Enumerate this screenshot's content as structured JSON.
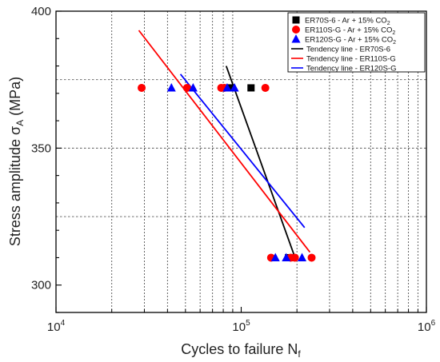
{
  "chart_data": {
    "type": "scatter",
    "xlabel": "Cycles to failure N",
    "xlabel_sub": "f",
    "ylabel": "Stress amplitude σ",
    "ylabel_sub": "A",
    "ylabel_unit": " (MPa)",
    "x_scale": "log",
    "xlim": [
      10000,
      1000000
    ],
    "ylim": [
      290,
      400
    ],
    "x_ticks": [
      {
        "value": 10000,
        "base": "10",
        "exp": "4"
      },
      {
        "value": 100000,
        "base": "10",
        "exp": "5"
      },
      {
        "value": 1000000,
        "base": "10",
        "exp": "6"
      }
    ],
    "y_ticks": [
      300,
      350,
      400
    ],
    "grid": {
      "x_minor": true,
      "y": [
        325,
        350,
        375
      ]
    },
    "legend_position": "top-right",
    "series": [
      {
        "name": "ER70S-6 - Ar + 15% CO",
        "name_sub": "2",
        "color": "#000000",
        "marker": "square",
        "points": [
          [
            85000,
            372
          ],
          [
            88000,
            372
          ],
          [
            113000,
            372
          ],
          [
            180000,
            310
          ],
          [
            190000,
            310
          ]
        ]
      },
      {
        "name": "ER110S-G - Ar + 15% CO",
        "name_sub": "2",
        "color": "#ff0000",
        "marker": "circle",
        "points": [
          [
            29000,
            372
          ],
          [
            51000,
            372
          ],
          [
            78000,
            372
          ],
          [
            81000,
            372
          ],
          [
            135000,
            372
          ],
          [
            145000,
            310
          ],
          [
            185000,
            310
          ],
          [
            195000,
            310
          ],
          [
            240000,
            310
          ]
        ]
      },
      {
        "name": "ER120S-G - Ar + 15% CO",
        "name_sub": "2",
        "color": "#0000ff",
        "marker": "triangle",
        "points": [
          [
            42000,
            372
          ],
          [
            55000,
            372
          ],
          [
            84000,
            372
          ],
          [
            92000,
            372
          ],
          [
            153000,
            310
          ],
          [
            175000,
            310
          ],
          [
            213000,
            310
          ]
        ]
      }
    ],
    "lines": [
      {
        "name": "Tendency line - ER70S-6",
        "color": "#000000",
        "points": [
          [
            83000,
            380
          ],
          [
            193000,
            311
          ]
        ]
      },
      {
        "name": "Tendency line - ER110S-G",
        "color": "#ff0000",
        "points": [
          [
            28000,
            393
          ],
          [
            235000,
            312
          ]
        ]
      },
      {
        "name": "Tendency line - ER120S-G",
        "color": "#0000ff",
        "points": [
          [
            47000,
            377
          ],
          [
            220000,
            321
          ]
        ]
      }
    ]
  }
}
